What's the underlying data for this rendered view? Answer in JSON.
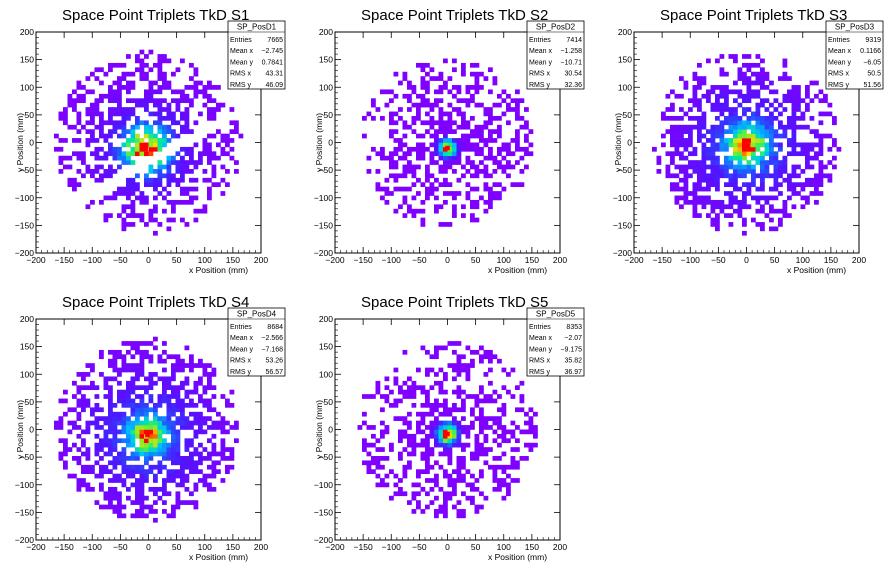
{
  "chart_data": [
    {
      "type": "heatmap",
      "title": "Space Point Triplets TkD S1",
      "xlabel": "x Position (mm)",
      "ylabel": "y Position (mm)",
      "xlim": [
        -200,
        200
      ],
      "ylim": [
        -200,
        200
      ],
      "x_ticks": [
        "−200",
        "−150",
        "−100",
        "−50",
        "0",
        "50",
        "100",
        "150",
        "200"
      ],
      "y_ticks": [
        "−200",
        "−150",
        "−100",
        "−50",
        "0",
        "50",
        "100",
        "150",
        "200"
      ],
      "stats": {
        "name": "SP_PosD1",
        "rows": [
          [
            "Entries",
            "7665"
          ],
          [
            "Mean x",
            "−2.745"
          ],
          [
            "Mean y",
            "0.7841"
          ],
          [
            "RMS x",
            "43.31"
          ],
          [
            "RMS y",
            "46.09"
          ]
        ]
      },
      "shape": "gap",
      "peak": [
        -5,
        -12
      ],
      "core_sigma": 25,
      "extent_radius": 165
    },
    {
      "type": "heatmap",
      "title": "Space Point Triplets TkD S2",
      "xlabel": "x Position (mm)",
      "ylabel": "y Position (mm)",
      "xlim": [
        -200,
        200
      ],
      "ylim": [
        -200,
        200
      ],
      "x_ticks": [
        "−200",
        "−150",
        "−100",
        "−50",
        "0",
        "50",
        "100",
        "150",
        "200"
      ],
      "y_ticks": [
        "−200",
        "−150",
        "−100",
        "−50",
        "0",
        "50",
        "100",
        "150",
        "200"
      ],
      "stats": {
        "name": "SP_PosD2",
        "rows": [
          [
            "Entries",
            "7414"
          ],
          [
            "Mean x",
            "−1.258"
          ],
          [
            "Mean y",
            "−10.71"
          ],
          [
            "RMS x",
            "30.54"
          ],
          [
            "RMS y",
            "32.36"
          ]
        ]
      },
      "shape": "sparse",
      "peak": [
        0,
        -10
      ],
      "core_sigma": 10,
      "extent_radius": 155
    },
    {
      "type": "heatmap",
      "title": "Space Point Triplets TkD S3",
      "xlabel": "x Position (mm)",
      "ylabel": "y Position (mm)",
      "xlim": [
        -200,
        200
      ],
      "ylim": [
        -200,
        200
      ],
      "x_ticks": [
        "−200",
        "−150",
        "−100",
        "−50",
        "0",
        "50",
        "100",
        "150",
        "200"
      ],
      "y_ticks": [
        "−200",
        "−150",
        "−100",
        "−50",
        "0",
        "50",
        "100",
        "150",
        "200"
      ],
      "stats": {
        "name": "SP_PosD3",
        "rows": [
          [
            "Entries",
            "9319"
          ],
          [
            "Mean x",
            "0.1166"
          ],
          [
            "Mean y",
            "−6.05"
          ],
          [
            "RMS x",
            "50.5"
          ],
          [
            "RMS y",
            "51.56"
          ]
        ]
      },
      "shape": "dense",
      "peak": [
        2,
        -5
      ],
      "core_sigma": 22,
      "extent_radius": 165
    },
    {
      "type": "heatmap",
      "title": "Space Point Triplets TkD S4",
      "xlabel": "x Position (mm)",
      "ylabel": "y Position (mm)",
      "xlim": [
        -200,
        200
      ],
      "ylim": [
        -200,
        200
      ],
      "x_ticks": [
        "−200",
        "−150",
        "−100",
        "−50",
        "0",
        "50",
        "100",
        "150",
        "200"
      ],
      "y_ticks": [
        "−200",
        "−150",
        "−100",
        "−50",
        "0",
        "50",
        "100",
        "150",
        "200"
      ],
      "stats": {
        "name": "SP_PosD4",
        "rows": [
          [
            "Entries",
            "8684"
          ],
          [
            "Mean x",
            "−2.566"
          ],
          [
            "Mean y",
            "−7.168"
          ],
          [
            "RMS x",
            "53.26"
          ],
          [
            "RMS y",
            "56.57"
          ]
        ]
      },
      "shape": "dense",
      "peak": [
        -2,
        -10
      ],
      "core_sigma": 20,
      "extent_radius": 165
    },
    {
      "type": "heatmap",
      "title": "Space Point Triplets TkD S5",
      "xlabel": "x Position (mm)",
      "ylabel": "y Position (mm)",
      "xlim": [
        -200,
        200
      ],
      "ylim": [
        -200,
        200
      ],
      "x_ticks": [
        "−200",
        "−150",
        "−100",
        "−50",
        "0",
        "50",
        "100",
        "150",
        "200"
      ],
      "y_ticks": [
        "−200",
        "−150",
        "−100",
        "−50",
        "0",
        "50",
        "100",
        "150",
        "200"
      ],
      "stats": {
        "name": "SP_PosD5",
        "rows": [
          [
            "Entries",
            "8353"
          ],
          [
            "Mean x",
            "−2.07"
          ],
          [
            "Mean y",
            "−9.175"
          ],
          [
            "RMS x",
            "35.82"
          ],
          [
            "RMS y",
            "36.97"
          ]
        ]
      },
      "shape": "sparse",
      "peak": [
        0,
        -8
      ],
      "core_sigma": 12,
      "extent_radius": 160
    }
  ]
}
